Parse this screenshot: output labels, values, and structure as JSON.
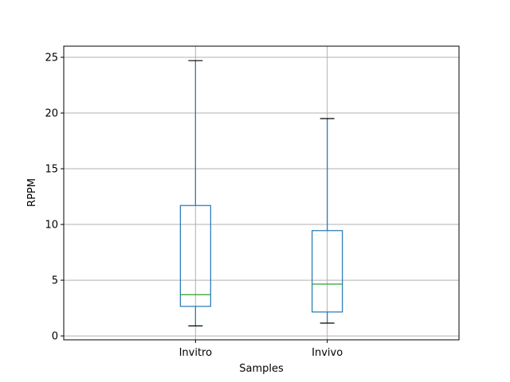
{
  "chart_data": {
    "type": "box",
    "title": "",
    "xlabel": "Samples",
    "ylabel": "RPPM",
    "ylim": [
      -0.35,
      26.0
    ],
    "yticks": [
      0,
      5,
      10,
      15,
      20,
      25
    ],
    "grid": true,
    "categories": [
      "Invitro",
      "Invivo"
    ],
    "boxes": [
      {
        "category": "Invitro",
        "whisker_low": 0.9,
        "q1": 2.65,
        "median": 3.7,
        "q3": 11.7,
        "whisker_high": 24.7
      },
      {
        "category": "Invivo",
        "whisker_low": 1.15,
        "q1": 2.15,
        "median": 4.65,
        "q3": 9.45,
        "whisker_high": 19.5
      }
    ],
    "colors": {
      "box": "#1f77b4",
      "median": "#2ca02c",
      "whisker_cap": "#000000",
      "grid": "#b0b0b0"
    }
  }
}
